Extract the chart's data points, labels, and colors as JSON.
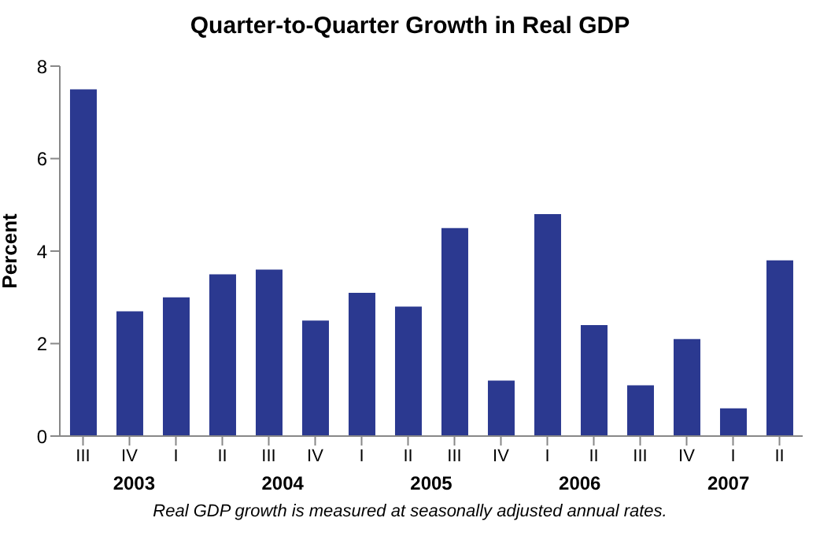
{
  "chart_data": {
    "type": "bar",
    "title": "Quarter-to-Quarter Growth in Real GDP",
    "ylabel": "Percent",
    "categories": [
      "III",
      "IV",
      "I",
      "II",
      "III",
      "IV",
      "I",
      "II",
      "III",
      "IV",
      "I",
      "II",
      "III",
      "IV",
      "I",
      "II"
    ],
    "values": [
      7.5,
      2.7,
      3.0,
      3.5,
      3.6,
      2.5,
      3.1,
      2.8,
      4.5,
      1.2,
      4.8,
      2.4,
      1.1,
      2.1,
      0.6,
      3.8
    ],
    "color": "#2b3990",
    "ylim": [
      0,
      8
    ],
    "yticks": [
      0,
      2,
      4,
      6,
      8
    ],
    "grid": false,
    "legend": false,
    "annotations": [
      "2003",
      "2004",
      "2005",
      "2006",
      "2007",
      "Real GDP growth is measured at seasonally adjusted annual rates."
    ]
  }
}
